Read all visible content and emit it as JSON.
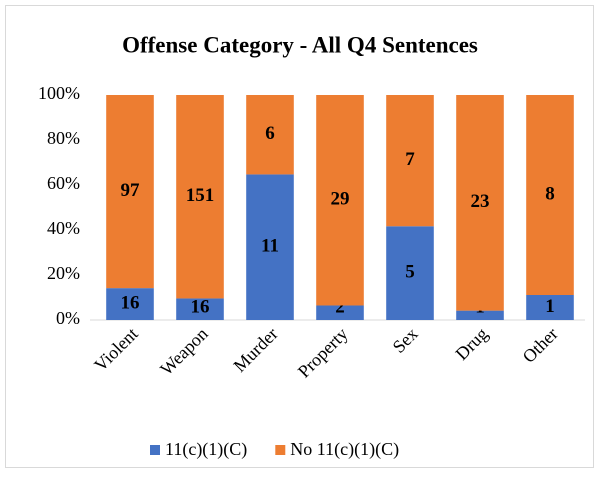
{
  "chart_data": {
    "type": "bar",
    "stacking": "percent",
    "title": "Offense Category - All Q4 Sentences",
    "categories": [
      "Violent",
      "Weapon",
      "Murder",
      "Property",
      "Sex",
      "Drug",
      "Other"
    ],
    "series": [
      {
        "name": "11(c)(1)(C)",
        "color": "#4472c4",
        "values": [
          16,
          16,
          11,
          2,
          5,
          1,
          1
        ]
      },
      {
        "name": "No 11(c)(1)(C)",
        "color": "#ed7d31",
        "values": [
          97,
          151,
          6,
          29,
          7,
          23,
          8
        ]
      }
    ],
    "ylim": [
      0,
      100
    ],
    "yticks": [
      {
        "value": 0,
        "label": "0%"
      },
      {
        "value": 20,
        "label": "20%"
      },
      {
        "value": 40,
        "label": "40%"
      },
      {
        "value": 60,
        "label": "60%"
      },
      {
        "value": 80,
        "label": "80%"
      },
      {
        "value": 100,
        "label": "100%"
      }
    ],
    "grid": false,
    "legend": "bottom"
  }
}
